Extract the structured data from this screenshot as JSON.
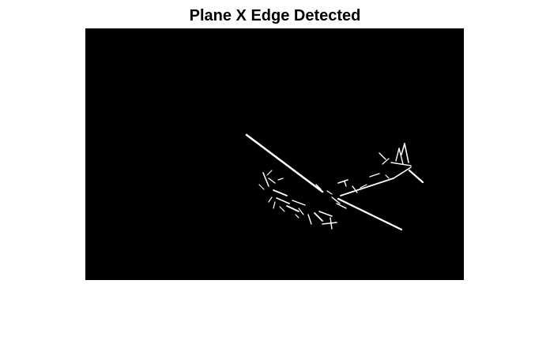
{
  "figure": {
    "title": "Plane X Edge Detected"
  },
  "image": {
    "description_colors": {
      "background": "#000000",
      "edges": "#ffffff"
    }
  }
}
